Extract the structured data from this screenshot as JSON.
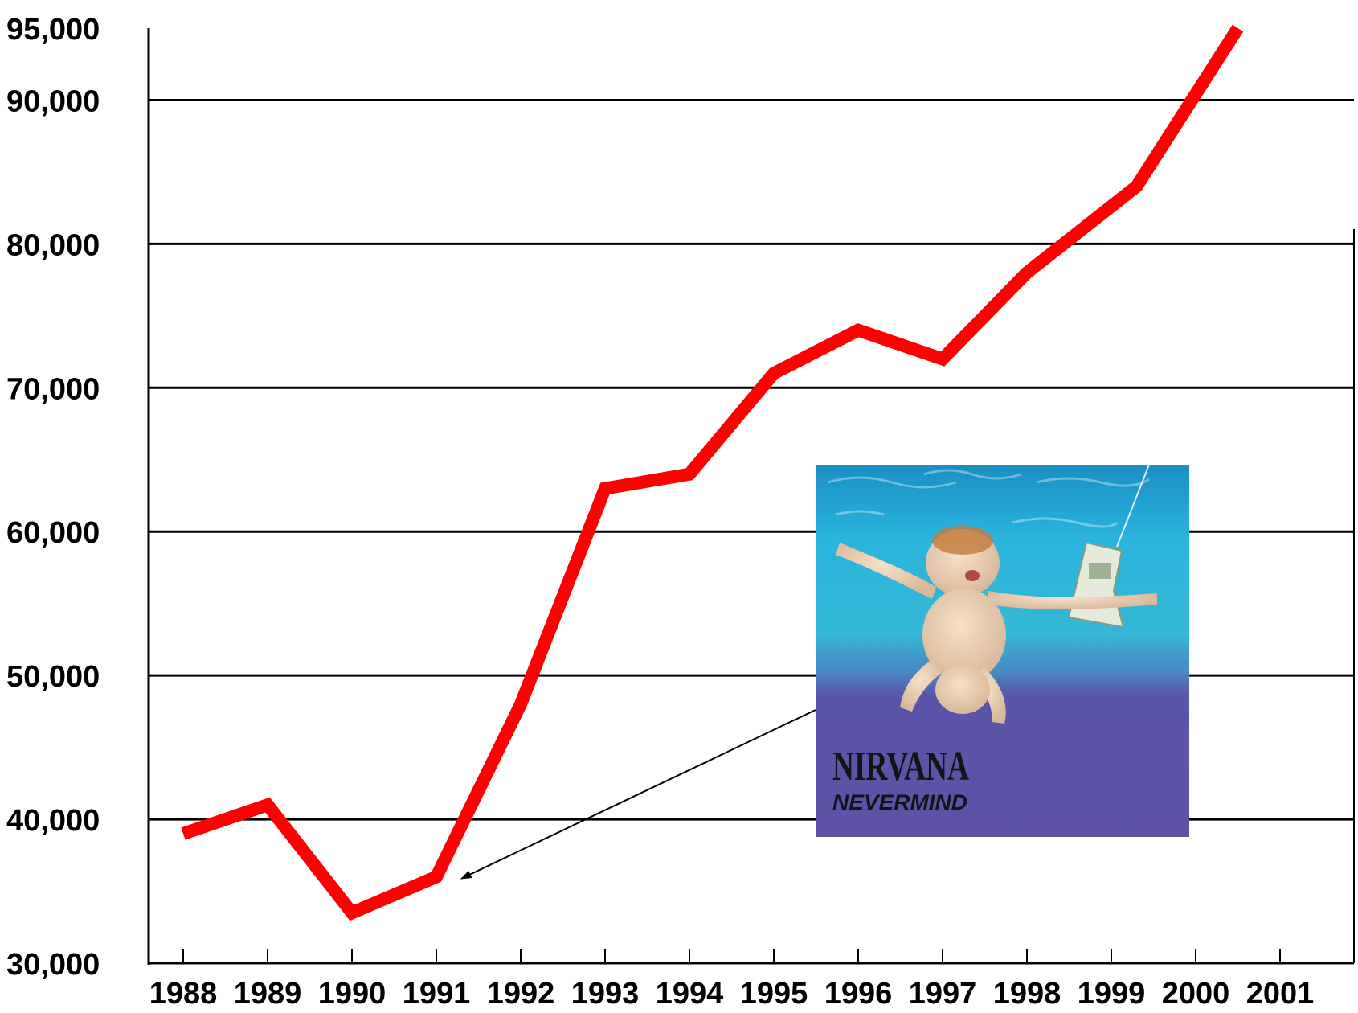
{
  "chart_data": {
    "type": "line",
    "title": "",
    "xlabel": "",
    "ylabel": "",
    "x": [
      "1988",
      "1989",
      "1990",
      "1991",
      "1992",
      "1993",
      "1994",
      "1995",
      "1996",
      "1997",
      "1998",
      "1999",
      "2000",
      "2001"
    ],
    "y_ticks": [
      {
        "value": 30000,
        "label": "30,000"
      },
      {
        "value": 40000,
        "label": "40,000"
      },
      {
        "value": 50000,
        "label": "50,000"
      },
      {
        "value": 60000,
        "label": "60,000"
      },
      {
        "value": 70000,
        "label": "70,000"
      },
      {
        "value": 80000,
        "label": "80,000"
      },
      {
        "value": 90000,
        "label": "90,000"
      },
      {
        "value": 95000,
        "label": "95,000"
      }
    ],
    "ylim": [
      30000,
      95000
    ],
    "grid": true,
    "series": [
      {
        "color": "#ff0000",
        "points": [
          {
            "x": 1988.0,
            "y": 39000
          },
          {
            "x": 1989.0,
            "y": 41000
          },
          {
            "x": 1990.0,
            "y": 33500
          },
          {
            "x": 1991.0,
            "y": 36000
          },
          {
            "x": 1992.0,
            "y": 48000
          },
          {
            "x": 1993.0,
            "y": 63000
          },
          {
            "x": 1994.0,
            "y": 64000
          },
          {
            "x": 1995.0,
            "y": 71000
          },
          {
            "x": 1996.0,
            "y": 74000
          },
          {
            "x": 1997.0,
            "y": 72000
          },
          {
            "x": 1998.0,
            "y": 78000
          },
          {
            "x": 1999.3,
            "y": 84000
          },
          {
            "x": 2000.5,
            "y": 95000
          }
        ]
      }
    ],
    "annotation": {
      "type": "image-arrow",
      "target_year": 1991.3,
      "target_value": 36000,
      "image": {
        "description": "album cover",
        "band_text": "NIRVANA",
        "album_text": "NEVERMIND"
      }
    }
  },
  "colors": {
    "line": "#ff0000",
    "grid": "#000000",
    "axis": "#000000",
    "water_top": "#2ab0d8",
    "water_bottom": "#5a55a8"
  }
}
